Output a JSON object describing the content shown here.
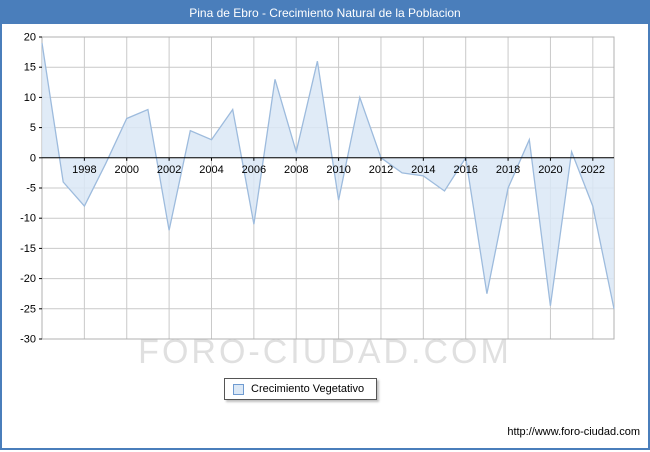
{
  "window": {
    "title": "Pina de Ebro - Crecimiento Natural de la Poblacion"
  },
  "legend": {
    "label": "Crecimiento Vegetativo"
  },
  "watermark": "FORO-CIUDAD.COM",
  "footer": {
    "url": "http://www.foro-ciudad.com"
  },
  "colors": {
    "titlebar": "#4a7ebb",
    "border": "#4a7ebb",
    "grid": "#c9c9c9",
    "plot_border": "#b0b0b0",
    "axis": "#000000",
    "area_fill": "#dbe8f6",
    "area_stroke": "#9dbbdd",
    "label": "#000000"
  },
  "chart_data": {
    "type": "area",
    "title": "Pina de Ebro - Crecimiento Natural de la Poblacion",
    "xlabel": "",
    "ylabel": "",
    "ylim": [
      -30,
      20
    ],
    "ytick_step": 5,
    "grid": true,
    "legend_position": "bottom",
    "baseline": 0,
    "x": [
      1996,
      1997,
      1998,
      1999,
      2000,
      2001,
      2002,
      2003,
      2004,
      2005,
      2006,
      2007,
      2008,
      2009,
      2010,
      2011,
      2012,
      2013,
      2014,
      2015,
      2016,
      2017,
      2018,
      2019,
      2020,
      2021,
      2022,
      2023
    ],
    "xtick_labels": [
      1998,
      2000,
      2002,
      2004,
      2006,
      2008,
      2010,
      2012,
      2014,
      2016,
      2018,
      2020,
      2022
    ],
    "series": [
      {
        "name": "Crecimiento Vegetativo",
        "values": [
          19,
          -4,
          -8,
          -1,
          6.5,
          8,
          -12,
          4.5,
          3,
          8,
          -11,
          13,
          1,
          16,
          -7,
          10,
          0,
          -2.5,
          -3,
          -5.5,
          0,
          -22.5,
          -5,
          3,
          -24.5,
          1,
          -8,
          -25
        ]
      }
    ]
  }
}
